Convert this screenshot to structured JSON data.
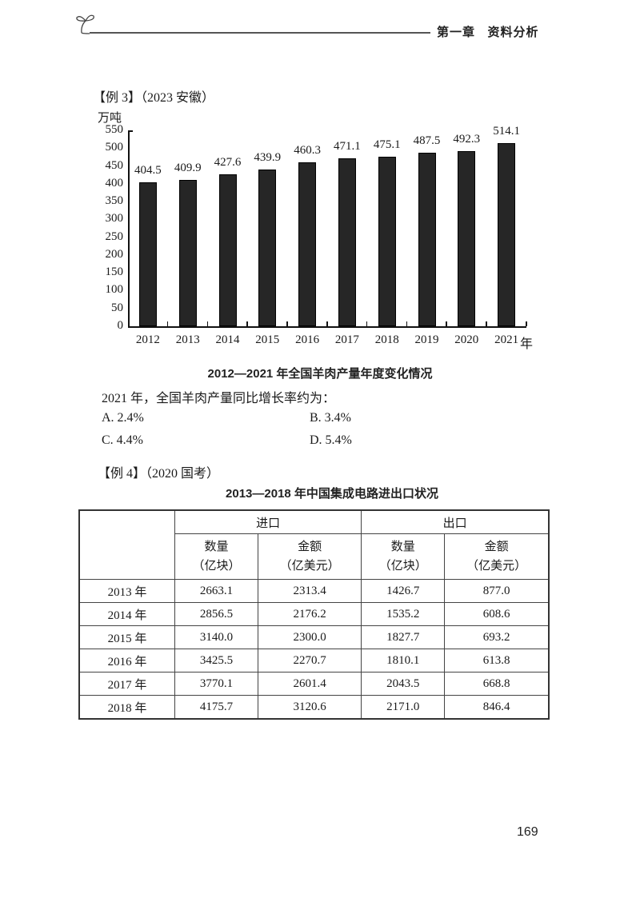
{
  "header": {
    "chapter": "第一章",
    "section": "资料分析",
    "icon": "sprout-icon"
  },
  "example3": {
    "label": "【例 3】",
    "source": "（2023  安徽）",
    "question": "2021 年，全国羊肉产量同比增长率约为：",
    "options": [
      {
        "key": "A",
        "text": "A. 2.4%"
      },
      {
        "key": "B",
        "text": "B. 3.4%"
      },
      {
        "key": "C",
        "text": "C. 4.4%"
      },
      {
        "key": "D",
        "text": "D. 5.4%"
      }
    ]
  },
  "chart_data": {
    "type": "bar",
    "title": "2012—2021 年全国羊肉产量年度变化情况",
    "ylabel": "万吨",
    "xlabel": "年",
    "categories": [
      "2012",
      "2013",
      "2014",
      "2015",
      "2016",
      "2017",
      "2018",
      "2019",
      "2020",
      "2021"
    ],
    "values": [
      404.5,
      409.9,
      427.6,
      439.9,
      460.3,
      471.1,
      475.1,
      487.5,
      492.3,
      514.1
    ],
    "value_labels": [
      "404.5",
      "409.9",
      "427.6",
      "439.9",
      "460.3",
      "471.1",
      "475.1",
      "487.5",
      "492.3",
      "514.1"
    ],
    "yticks": [
      "0",
      "50",
      "100",
      "150",
      "200",
      "250",
      "300",
      "350",
      "400",
      "450",
      "500",
      "550"
    ],
    "ylim": [
      0,
      550
    ],
    "grid": false,
    "legend": null,
    "bar_color": "#262626"
  },
  "example4": {
    "label": "【例 4】",
    "source": "（2020  国考）",
    "table_title": "2013—2018 年中国集成电路进出口状况",
    "group_headers": [
      "进口",
      "出口"
    ],
    "sub_headers": [
      {
        "name": "数量",
        "unit": "（亿块）"
      },
      {
        "name": "金额",
        "unit": "（亿美元）"
      },
      {
        "name": "数量",
        "unit": "（亿块）"
      },
      {
        "name": "金额",
        "unit": "（亿美元）"
      }
    ],
    "rows": [
      {
        "year": "2013 年",
        "cells": [
          "2663.1",
          "2313.4",
          "1426.7",
          "877.0"
        ]
      },
      {
        "year": "2014 年",
        "cells": [
          "2856.5",
          "2176.2",
          "1535.2",
          "608.6"
        ]
      },
      {
        "year": "2015 年",
        "cells": [
          "3140.0",
          "2300.0",
          "1827.7",
          "693.2"
        ]
      },
      {
        "year": "2016 年",
        "cells": [
          "3425.5",
          "2270.7",
          "1810.1",
          "613.8"
        ]
      },
      {
        "year": "2017 年",
        "cells": [
          "3770.1",
          "2601.4",
          "2043.5",
          "668.8"
        ]
      },
      {
        "year": "2018 年",
        "cells": [
          "4175.7",
          "3120.6",
          "2171.0",
          "846.4"
        ]
      }
    ]
  },
  "footer": {
    "page_number": "169"
  }
}
